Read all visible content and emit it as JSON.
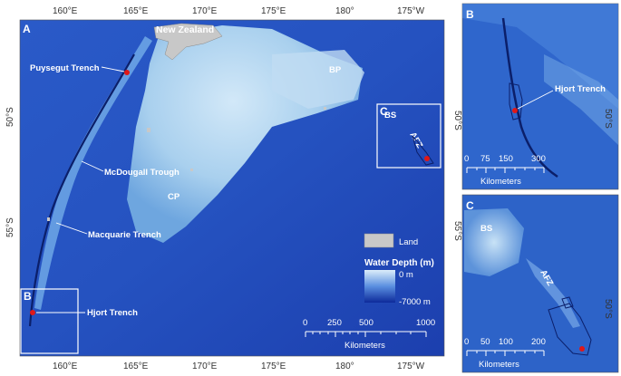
{
  "panel_a": {
    "letter": "A",
    "labels": {
      "new_zealand": "New Zealand",
      "puysegur": "Puysegut Trench",
      "mcdougall": "McDougall Trough",
      "macquarie": "Macquarie Trench",
      "hjort": "Hjort Trench",
      "cp": "CP",
      "bp": "BP",
      "bs": "BS",
      "afz": "AFZ"
    },
    "inset_b_letter": "B",
    "inset_c_letter": "C",
    "lon_ticks": [
      "160°E",
      "165°E",
      "170°E",
      "175°E",
      "180°",
      "175°W"
    ],
    "lat_ticks_left": [
      "50°S",
      "55°S"
    ],
    "lat_ticks_right": [
      "50°S",
      "55°S"
    ],
    "legend": {
      "land_label": "Land",
      "depth_title": "Water Depth (m)",
      "depth_max": "0 m",
      "depth_min": "-7000 m"
    },
    "scalebar": {
      "values": [
        "0",
        "250",
        "500",
        "1000"
      ],
      "unit": "Kilometers"
    }
  },
  "panel_b": {
    "letter": "B",
    "label": "Hjort Trench",
    "lat_tick": "50°S",
    "scalebar": {
      "values": [
        "0",
        "75",
        "150",
        "300"
      ],
      "unit": "Kilometers"
    }
  },
  "panel_c": {
    "letter": "C",
    "label_bs": "BS",
    "label_afz": "AFZ",
    "lat_tick": "50°S",
    "scalebar": {
      "values": [
        "0",
        "50",
        "100",
        "200"
      ],
      "unit": "Kilometers"
    }
  },
  "colors": {
    "deep": "#1a3fb0",
    "mid": "#3d78d6",
    "shallow": "#b8d8f0",
    "land": "#c8c8c8",
    "marker": "#e01818"
  }
}
